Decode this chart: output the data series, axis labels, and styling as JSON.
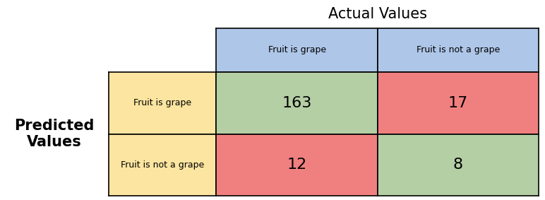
{
  "title": "Actual Values",
  "ylabel_line1": "Predicted",
  "ylabel_line2": "Values",
  "col_labels": [
    "Fruit is grape",
    "Fruit is not a grape"
  ],
  "row_labels": [
    "Fruit is grape",
    "Fruit is not a grape"
  ],
  "values": [
    [
      163,
      17
    ],
    [
      12,
      8
    ]
  ],
  "header_bg": "#aec6e8",
  "row_label_bg": "#fce5a0",
  "cell_colors": [
    [
      "#b5cfa5",
      "#f08080"
    ],
    [
      "#f08080",
      "#b5cfa5"
    ]
  ],
  "title_fontsize": 15,
  "ylabel_fontsize": 15,
  "value_fontsize": 16,
  "cell_label_fontsize": 9,
  "bg_color": "#ffffff",
  "figsize": [
    7.72,
    2.83
  ],
  "dpi": 100
}
